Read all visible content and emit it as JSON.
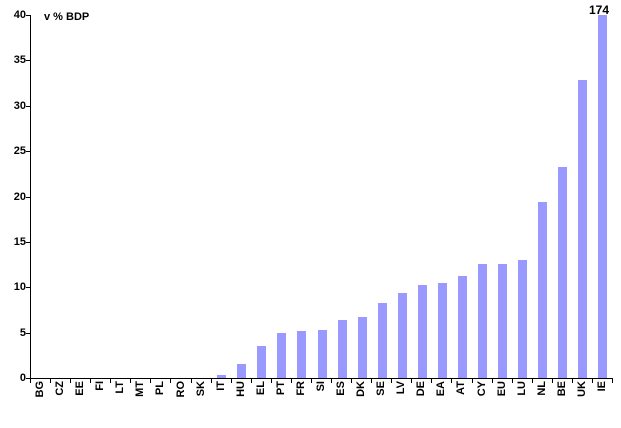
{
  "chart_data": {
    "type": "bar",
    "title": "",
    "ylabel": "v % BDP",
    "xlabel": "",
    "categories": [
      "BG",
      "CZ",
      "EE",
      "FI",
      "LT",
      "MT",
      "PL",
      "RO",
      "SK",
      "IT",
      "HU",
      "EL",
      "PT",
      "FR",
      "SI",
      "ES",
      "DK",
      "SE",
      "LV",
      "DE",
      "EA",
      "AT",
      "CY",
      "EU",
      "LU",
      "NL",
      "BE",
      "UK",
      "IE"
    ],
    "values": [
      0,
      0,
      0,
      0,
      0,
      0,
      0,
      0,
      0,
      0.3,
      1.6,
      3.5,
      5.0,
      5.2,
      5.3,
      6.4,
      6.7,
      8.3,
      9.4,
      10.3,
      10.5,
      11.3,
      12.6,
      12.6,
      13.0,
      19.4,
      23.3,
      32.8,
      174
    ],
    "ylim": [
      0,
      40
    ],
    "y_ticks": [
      0,
      5,
      10,
      15,
      20,
      25,
      30,
      35,
      40
    ],
    "bar_color": "#9999FF",
    "grid": false,
    "legend_position": "none",
    "data_labels": [
      {
        "category": "IE",
        "text": "174"
      }
    ]
  }
}
